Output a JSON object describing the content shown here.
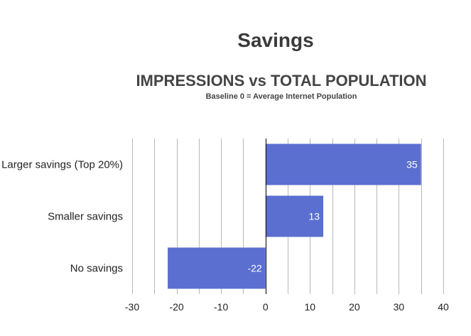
{
  "page_title": "Savings",
  "chart_data": {
    "type": "bar",
    "orientation": "horizontal",
    "title": "IMPRESSIONS vs TOTAL POPULATION",
    "subtitle": "Baseline 0 = Average Internet Population",
    "categories": [
      "Larger savings (Top 20%)",
      "Smaller savings",
      "No savings"
    ],
    "values": [
      35,
      13,
      -22
    ],
    "data_labels": [
      "35",
      "13",
      "-22"
    ],
    "xlim": [
      -30,
      40
    ],
    "xticks": [
      -30,
      -20,
      -10,
      0,
      10,
      20,
      30,
      40
    ],
    "xtick_labels": [
      "-30",
      "-20",
      "-10",
      "0",
      "10",
      "20",
      "30",
      "40"
    ],
    "grid": true,
    "bar_color": "#5b6fd0",
    "legend": "none"
  }
}
